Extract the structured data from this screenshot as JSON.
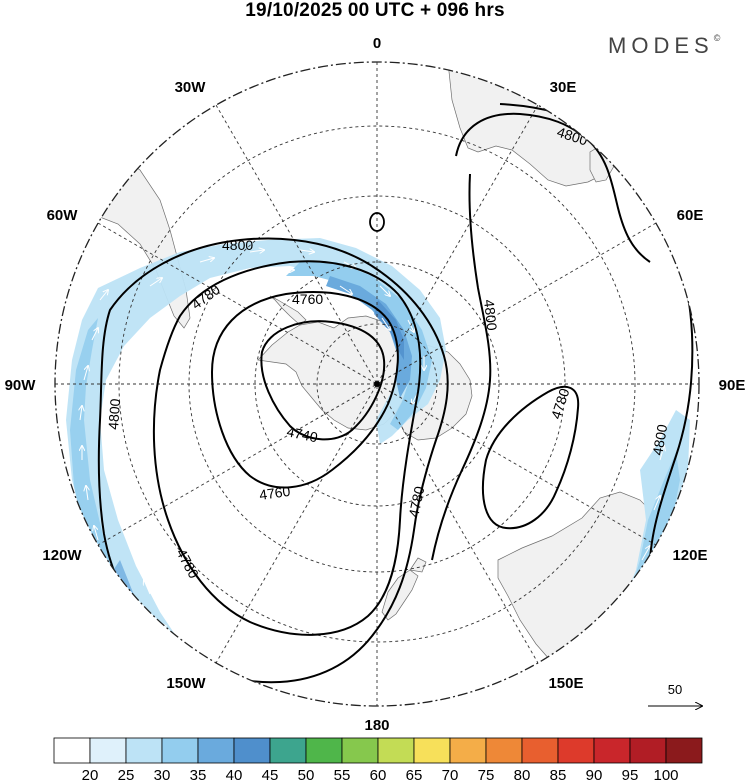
{
  "header": {
    "title": "19/10/2025  00 UTC  + 096 hrs",
    "brand": "MODES",
    "brand_mark": "©"
  },
  "map": {
    "projection": "south-polar-stereographic",
    "longitude_labels": {
      "top": "0",
      "top_right": "30E",
      "right_upper": "60E",
      "right": "90E",
      "right_lower": "120E",
      "bottom_right": "150E",
      "bottom": "180",
      "bottom_left": "150W",
      "left_lower": "120W",
      "left": "90W",
      "left_upper": "60W",
      "top_left": "30W"
    },
    "contour_labels": {
      "c1": "4800",
      "c2": "4780",
      "c3": "4760",
      "c4": "4800",
      "c5": "4800",
      "c6": "4780",
      "c7": "4800",
      "c8": "4780",
      "c9": "4780",
      "c10": "4740",
      "c11": "4760",
      "c12": "4800"
    },
    "vector_reference": {
      "value": "50"
    }
  },
  "colorbar": {
    "labels": [
      "20",
      "25",
      "30",
      "35",
      "40",
      "45",
      "50",
      "55",
      "60",
      "65",
      "70",
      "75",
      "80",
      "85",
      "90",
      "95",
      "100"
    ],
    "colors": [
      "#ffffff",
      "#dff1fb",
      "#bde3f6",
      "#93cdee",
      "#6aaadd",
      "#4f8fcc",
      "#3da58e",
      "#4fb64a",
      "#86c84d",
      "#c3dc55",
      "#f7e05a",
      "#f4ad48",
      "#ee8837",
      "#e85f2f",
      "#dd3a2b",
      "#c9262b",
      "#b11d25",
      "#8b1a1c"
    ]
  }
}
